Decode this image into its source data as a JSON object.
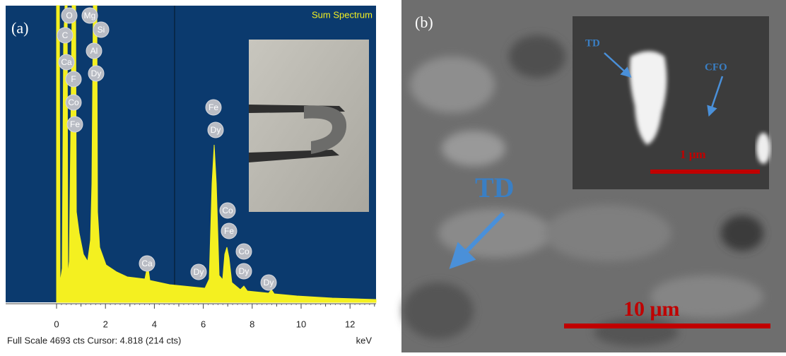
{
  "panel_a": {
    "label": "(a)",
    "title": "Sum Spectrum",
    "peak_labels": [
      "O",
      "Mg",
      "C",
      "Si",
      "Ca",
      "Al",
      "F",
      "Dy",
      "Co",
      "Fe",
      "Fe",
      "Dy",
      "Co",
      "Fe",
      "Co",
      "Dy",
      "Ca",
      "Dy",
      "Dy"
    ],
    "x_ticks": [
      "0",
      "2",
      "4",
      "6",
      "8",
      "10",
      "12"
    ],
    "x_unit": "keV",
    "footer": "Full Scale 4693 cts Cursor: 4.818  (214 cts)"
  },
  "panel_b": {
    "label": "(b)",
    "arrow_label": "TD",
    "scale_bar": "10 μm",
    "inset": {
      "td_label": "TD",
      "cfo_label": "CFO",
      "scale_bar": "1 μm"
    }
  }
}
